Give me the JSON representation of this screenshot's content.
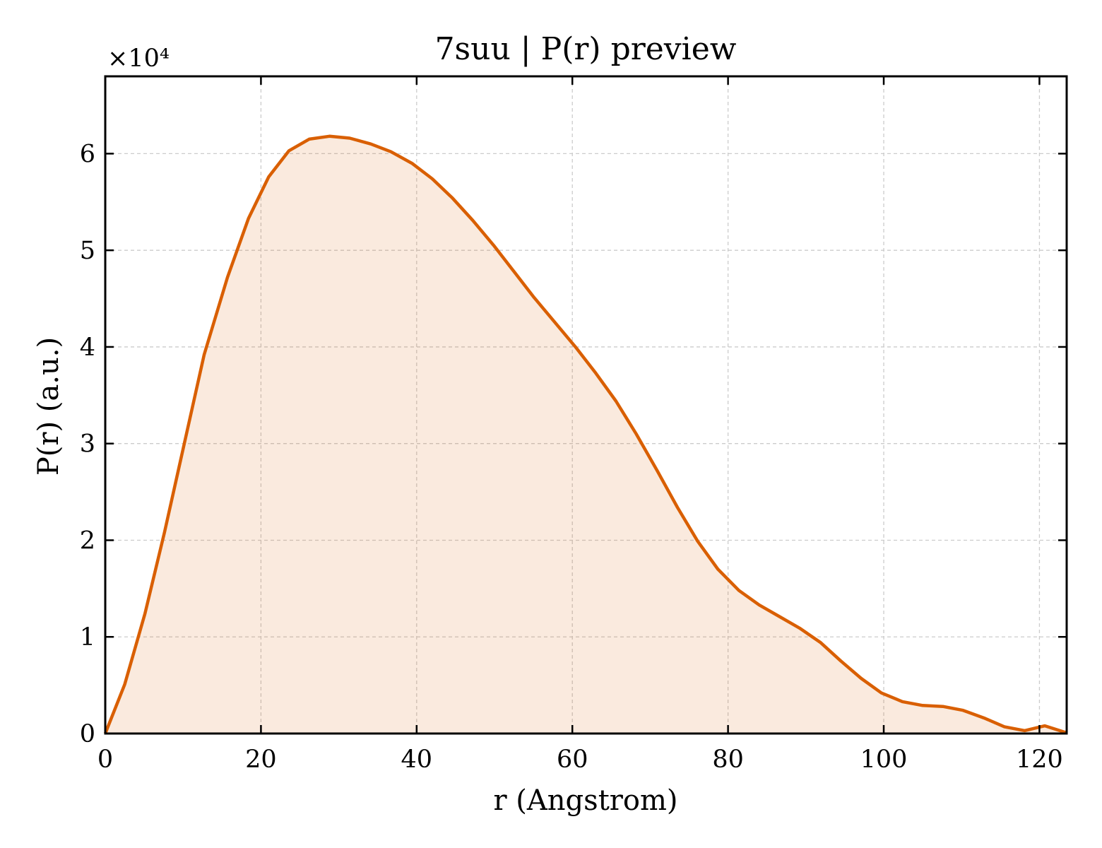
{
  "chart_data": {
    "type": "area",
    "title": "7suu | P(r) preview",
    "xlabel": "r (Angstrom)",
    "ylabel": "P(r) (a.u.)",
    "y_multiplier_label": "×10⁴",
    "y_multiplier": 10000,
    "xlim": [
      0,
      123.5
    ],
    "ylim": [
      0,
      68000
    ],
    "xticks": [
      0,
      20,
      40,
      60,
      80,
      100,
      120
    ],
    "yticks": [
      0,
      10000,
      20000,
      30000,
      40000,
      50000,
      60000
    ],
    "ytick_labels": [
      "0",
      "1",
      "2",
      "3",
      "4",
      "5",
      "6"
    ],
    "grid": true,
    "colors": {
      "line": "#d95f02",
      "fill": "#d95f02",
      "fill_opacity": 0.13,
      "grid": "#cccccc"
    },
    "x": [
      0,
      2.5,
      5.1,
      7.6,
      10.1,
      12.7,
      15.7,
      18.4,
      21.0,
      23.6,
      26.2,
      28.8,
      31.4,
      34.1,
      36.7,
      39.4,
      42.0,
      44.6,
      47.2,
      49.9,
      52.5,
      55.1,
      57.7,
      60.4,
      63.0,
      65.6,
      68.2,
      70.9,
      73.5,
      76.1,
      78.7,
      81.4,
      84.0,
      86.6,
      89.2,
      91.9,
      94.5,
      97.1,
      99.7,
      102.4,
      105.0,
      107.6,
      110.2,
      112.9,
      115.5,
      118.1,
      120.7,
      123.4
    ],
    "y": [
      0,
      5100,
      12400,
      20800,
      29800,
      39200,
      47200,
      53300,
      57600,
      60300,
      61500,
      61800,
      61600,
      61000,
      60200,
      59000,
      57400,
      55400,
      53100,
      50500,
      47800,
      45100,
      42600,
      40000,
      37300,
      34400,
      31000,
      27200,
      23400,
      19900,
      17000,
      14800,
      13300,
      12100,
      10900,
      9400,
      7500,
      5700,
      4200,
      3300,
      2900,
      2800,
      2400,
      1600,
      700,
      300,
      800,
      100
    ]
  }
}
